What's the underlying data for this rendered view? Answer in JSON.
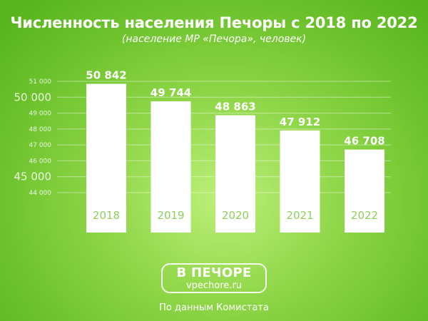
{
  "chart_data": {
    "type": "bar",
    "title": "Численность населения Печоры с 2018 по 2022",
    "subtitle": "(население МР «Печора», человек)",
    "categories": [
      "2018",
      "2019",
      "2020",
      "2021",
      "2022"
    ],
    "values": [
      50842,
      49744,
      48863,
      47912,
      46708
    ],
    "value_labels": [
      "50 842",
      "49 744",
      "48 863",
      "47 912",
      "46 708"
    ],
    "ylim": [
      44000,
      51000
    ],
    "y_ticks": [
      {
        "value": 51000,
        "label": "51 000"
      },
      {
        "value": 50000,
        "label": "50 000"
      },
      {
        "value": 49000,
        "label": "49 000"
      },
      {
        "value": 48000,
        "label": "48 000"
      },
      {
        "value": 47000,
        "label": "47 000"
      },
      {
        "value": 46000,
        "label": "46 000"
      },
      {
        "value": 45000,
        "label": "45 000"
      },
      {
        "value": 44000,
        "label": "44 000"
      }
    ],
    "grid": true,
    "xlabel": "",
    "ylabel": ""
  },
  "logo": {
    "name": "В ПЕЧОРЕ",
    "url": "vpechore.ru"
  },
  "source": "По данным Комистата",
  "colors": {
    "background": "#6cc22c",
    "bar": "#ffffff",
    "text": "#ffffff"
  }
}
